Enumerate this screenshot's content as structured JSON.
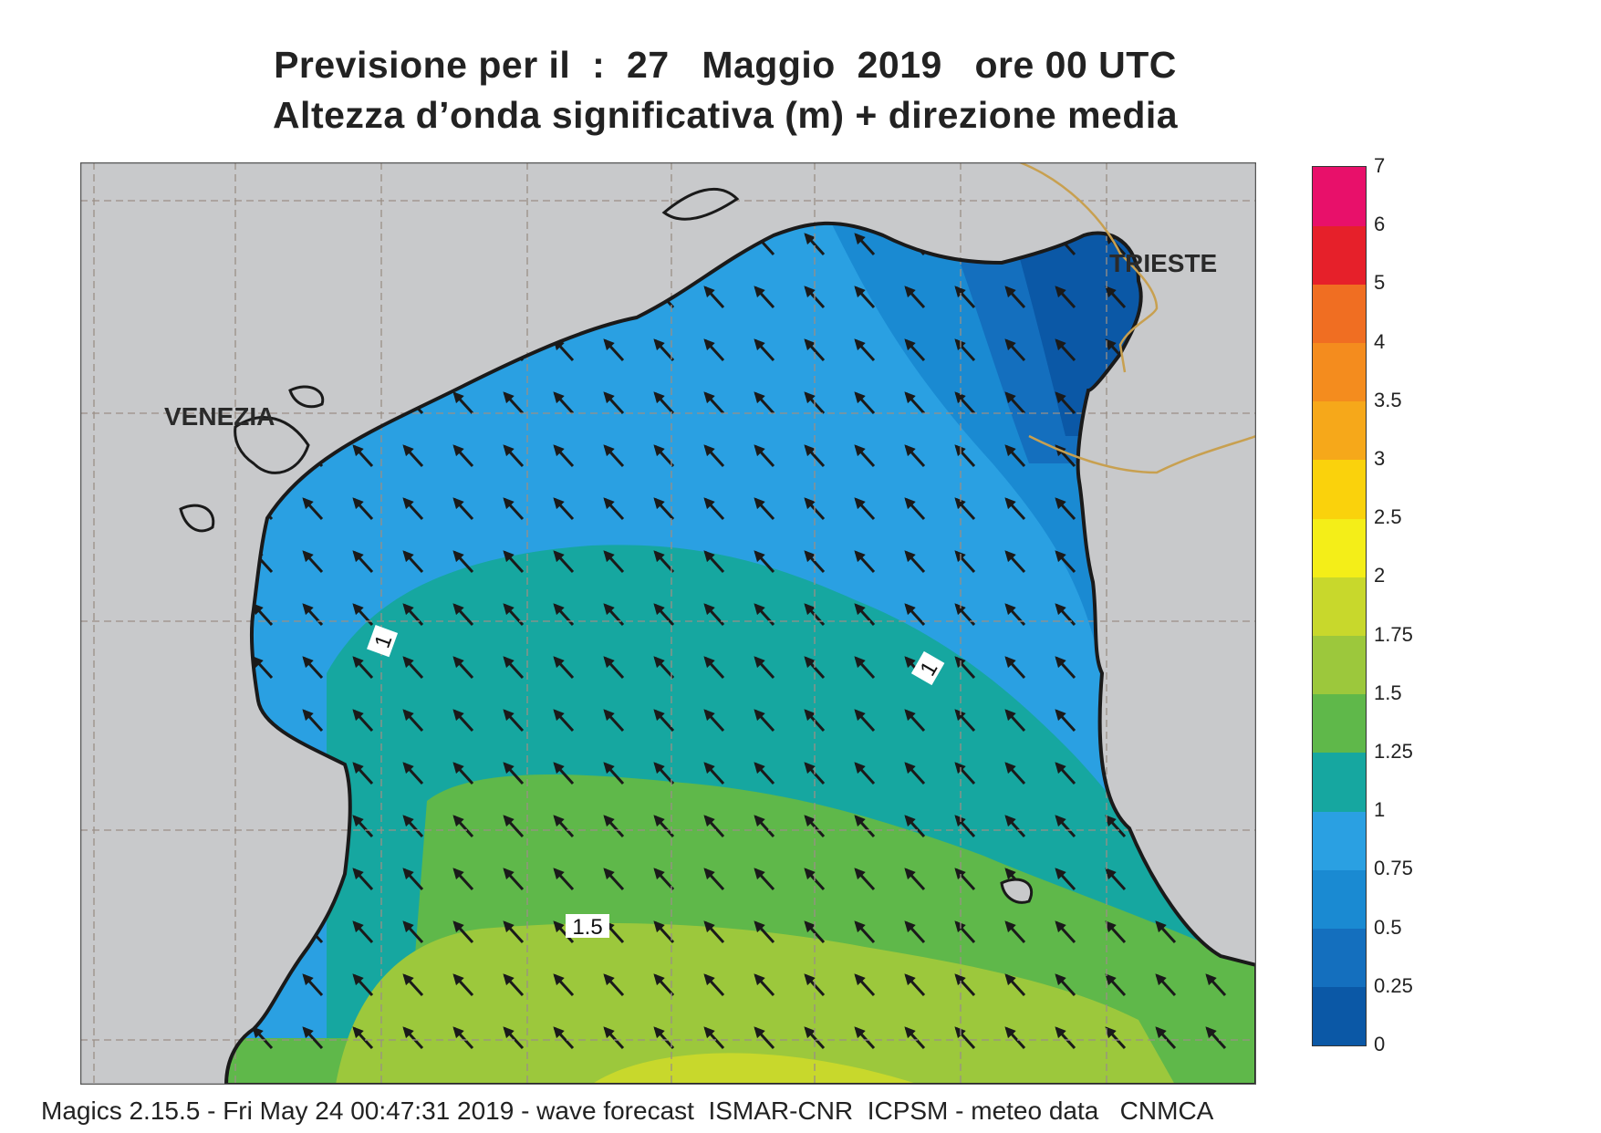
{
  "header": {
    "line1": "Previsione per il  :  27   Maggio  2019   ore 00 UTC",
    "line2": "Altezza d’onda significativa (m) + direzione media"
  },
  "map": {
    "region": "Northern Adriatic Sea",
    "cities": [
      {
        "name": "VENEZIA"
      },
      {
        "name": "TRIESTE"
      }
    ],
    "contour_labels": [
      "1",
      "1",
      "1.5"
    ],
    "arrow_direction": "north-west",
    "colors": {
      "land": "#c8c9cb",
      "coast": "#1a1a1a",
      "border": "#c8a050",
      "grid": "#9a8f86"
    }
  },
  "legend": {
    "levels": [
      "0",
      "0.25",
      "0.5",
      "0.75",
      "1",
      "1.25",
      "1.5",
      "1.75",
      "2",
      "2.5",
      "3",
      "3.5",
      "4",
      "5",
      "6",
      "7"
    ],
    "colors": [
      "#0b58a6",
      "#146fbe",
      "#1a8ad2",
      "#2aa0e2",
      "#16a7a0",
      "#5fb84a",
      "#9cc83c",
      "#c8d82c",
      "#f4ee18",
      "#fad20c",
      "#f6a81a",
      "#f48c1e",
      "#f06e22",
      "#e6202a",
      "#e8106a"
    ]
  },
  "footer": {
    "text": "Magics 2.15.5 - Fri May 24 00:47:31 2019 - wave forecast  ISMAR-CNR  ICPSM - meteo data   CNMCA"
  }
}
